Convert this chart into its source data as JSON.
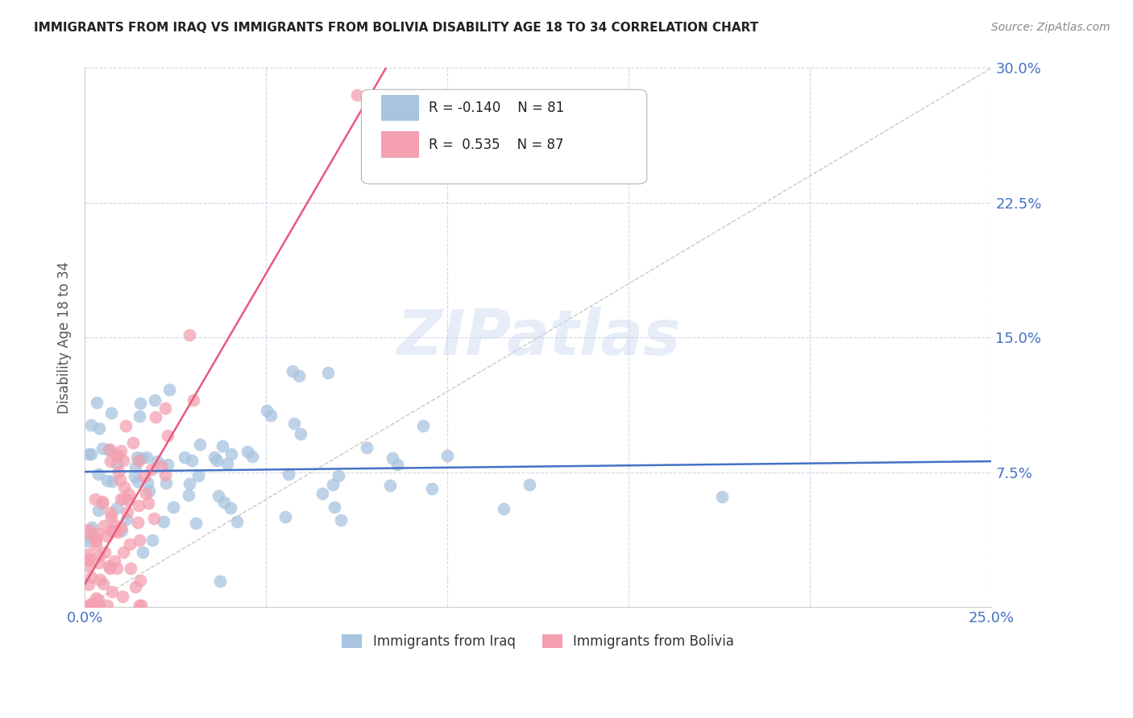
{
  "title": "IMMIGRANTS FROM IRAQ VS IMMIGRANTS FROM BOLIVIA DISABILITY AGE 18 TO 34 CORRELATION CHART",
  "source": "Source: ZipAtlas.com",
  "ylabel": "Disability Age 18 to 34",
  "xlim": [
    0.0,
    0.25
  ],
  "ylim": [
    0.0,
    0.3
  ],
  "iraq_R": -0.14,
  "iraq_N": 81,
  "bolivia_R": 0.535,
  "bolivia_N": 87,
  "iraq_color": "#a8c4e0",
  "bolivia_color": "#f4a0b0",
  "iraq_line_color": "#4472c4",
  "bolivia_line_color": "#e85a7a",
  "diagonal_color": "#c8c8c8",
  "background_color": "#ffffff",
  "grid_color": "#d0d8e8",
  "watermark_text": "ZIPatlas",
  "legend_iraq_label": "Immigrants from Iraq",
  "legend_bolivia_label": "Immigrants from Bolivia"
}
